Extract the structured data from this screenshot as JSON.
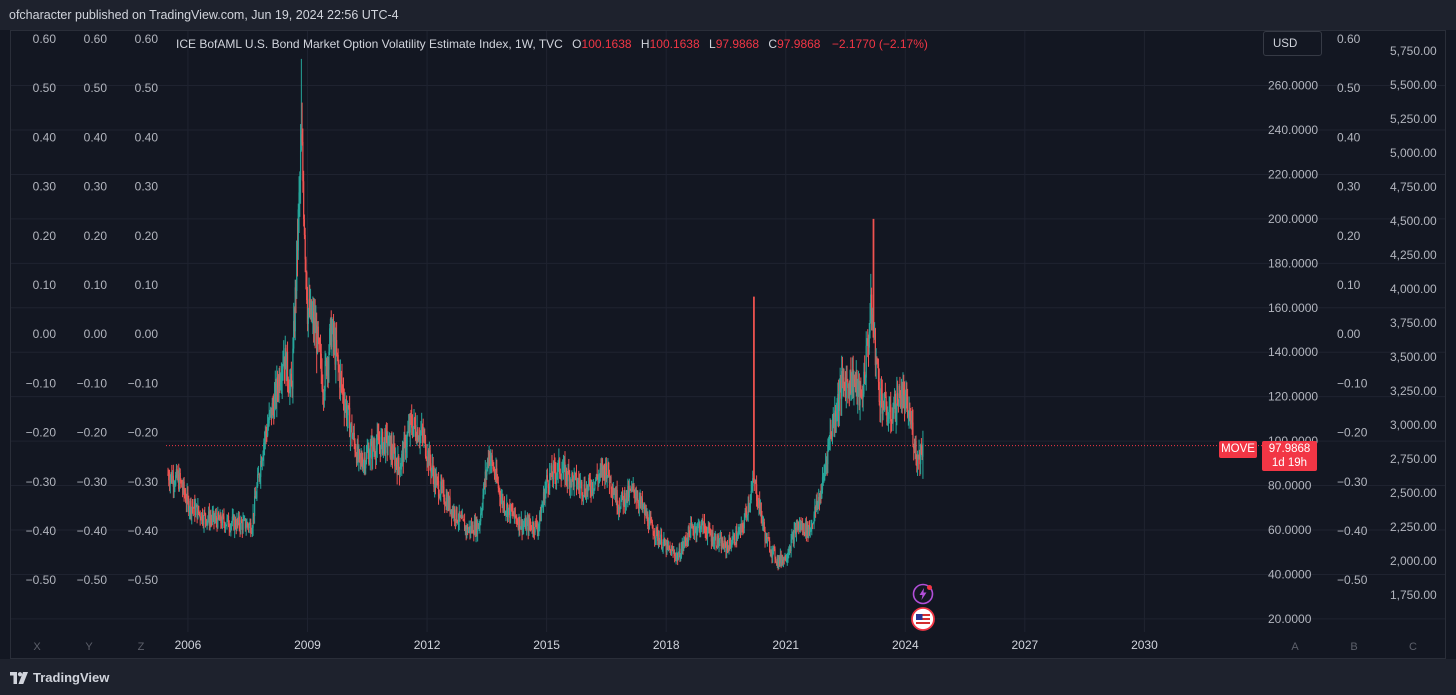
{
  "header": {
    "published": "ofcharacter published on TradingView.com, Jun 19, 2024 22:56 UTC-4"
  },
  "legend": {
    "title": "ICE BofAML U.S. Bond Market Option Volatility Estimate Index, 1W, TVC",
    "o_label": "O",
    "o_value": "100.1638",
    "h_label": "H",
    "h_value": "100.1638",
    "l_label": "L",
    "l_value": "97.9868",
    "c_label": "C",
    "c_value": "97.9868",
    "change": "−2.1770 (−2.17%)"
  },
  "currency": "USD",
  "symbol_tag": "MOVE",
  "last_price": "97.9868",
  "countdown": "1d 19h",
  "footer": {
    "brand": "TradingView"
  },
  "colors": {
    "up": "#26a69a",
    "down": "#ef5350",
    "accent": "#f23645",
    "background": "#131722"
  },
  "icons": [
    "tradingview-logo-icon",
    "lightning-icon",
    "us-flag-icon"
  ],
  "chart_data": {
    "type": "candlestick",
    "timeframe": "1W",
    "title": "ICE BofAML U.S. Bond Market Option Volatility Estimate Index, 1W, TVC",
    "x_ticks": [
      "2006",
      "2009",
      "2012",
      "2015",
      "2018",
      "2021",
      "2024",
      "2027",
      "2030"
    ],
    "x_range": [
      2005.45,
      2032.85
    ],
    "y_axis_main": {
      "ticks": [
        "20.0000",
        "40.0000",
        "60.0000",
        "80.0000",
        "100.0000",
        "120.0000",
        "140.0000",
        "160.0000",
        "180.0000",
        "200.0000",
        "220.0000",
        "240.0000",
        "260.0000"
      ],
      "range": [
        15,
        285
      ]
    },
    "y_axis_secondary": {
      "ticks": [
        "0.60",
        "0.50",
        "0.40",
        "0.30",
        "0.20",
        "0.10",
        "0.00",
        "−0.10",
        "−0.20",
        "−0.30",
        "−0.40",
        "−0.50"
      ]
    },
    "y_axis_right_extra": {
      "ticks": [
        "5,750.00",
        "5,500.00",
        "5,250.00",
        "5,000.00",
        "4,750.00",
        "4,500.00",
        "4,250.00",
        "4,000.00",
        "3,750.00",
        "3,500.00",
        "3,250.00",
        "3,000.00",
        "2,750.00",
        "2,500.00",
        "2,250.00",
        "2,000.00",
        "1,750.00"
      ]
    },
    "pane_letters_left": [
      "X",
      "Y",
      "Z"
    ],
    "pane_letters_right": [
      "A",
      "B",
      "C"
    ],
    "last_value": 97.9868,
    "series_anchor_points": [
      [
        2005.5,
        85
      ],
      [
        2005.8,
        82
      ],
      [
        2006.0,
        72
      ],
      [
        2006.4,
        66
      ],
      [
        2006.8,
        64
      ],
      [
        2007.2,
        63
      ],
      [
        2007.6,
        62
      ],
      [
        2007.9,
        100
      ],
      [
        2008.2,
        120
      ],
      [
        2008.4,
        140
      ],
      [
        2008.6,
        122
      ],
      [
        2008.85,
        235
      ],
      [
        2009.0,
        160
      ],
      [
        2009.2,
        150
      ],
      [
        2009.4,
        125
      ],
      [
        2009.6,
        150
      ],
      [
        2009.8,
        130
      ],
      [
        2010.0,
        112
      ],
      [
        2010.3,
        90
      ],
      [
        2010.7,
        98
      ],
      [
        2011.0,
        100
      ],
      [
        2011.3,
        88
      ],
      [
        2011.6,
        108
      ],
      [
        2011.9,
        102
      ],
      [
        2012.2,
        82
      ],
      [
        2012.6,
        70
      ],
      [
        2013.0,
        60
      ],
      [
        2013.3,
        62
      ],
      [
        2013.55,
        95
      ],
      [
        2013.9,
        72
      ],
      [
        2014.4,
        62
      ],
      [
        2014.8,
        62
      ],
      [
        2015.0,
        82
      ],
      [
        2015.3,
        88
      ],
      [
        2015.7,
        82
      ],
      [
        2016.0,
        78
      ],
      [
        2016.5,
        88
      ],
      [
        2016.8,
        72
      ],
      [
        2017.2,
        78
      ],
      [
        2017.6,
        62
      ],
      [
        2018.0,
        52
      ],
      [
        2018.3,
        48
      ],
      [
        2018.6,
        60
      ],
      [
        2018.9,
        62
      ],
      [
        2019.2,
        56
      ],
      [
        2019.5,
        52
      ],
      [
        2019.9,
        60
      ],
      [
        2020.2,
        82
      ],
      [
        2020.35,
        70
      ],
      [
        2020.5,
        56
      ],
      [
        2020.8,
        46
      ],
      [
        2021.0,
        48
      ],
      [
        2021.3,
        62
      ],
      [
        2021.6,
        60
      ],
      [
        2021.9,
        78
      ],
      [
        2022.1,
        102
      ],
      [
        2022.4,
        125
      ],
      [
        2022.7,
        128
      ],
      [
        2022.9,
        118
      ],
      [
        2023.15,
        160
      ],
      [
        2023.35,
        122
      ],
      [
        2023.6,
        110
      ],
      [
        2023.9,
        122
      ],
      [
        2024.15,
        108
      ],
      [
        2024.3,
        92
      ],
      [
        2024.45,
        98
      ]
    ],
    "spikes": [
      [
        2008.85,
        272
      ],
      [
        2020.2,
        165
      ],
      [
        2023.2,
        200
      ]
    ]
  }
}
